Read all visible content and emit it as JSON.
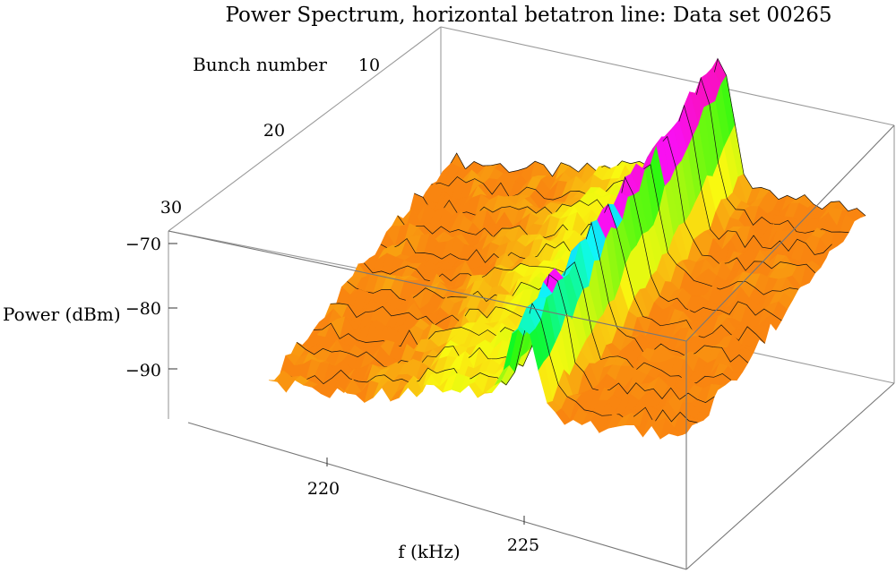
{
  "chart_data": {
    "type": "surface3d",
    "title": "Power Spectrum, horizontal betatron line: Data set 00265",
    "xlabel": "f (kHz)",
    "ylabel": "Bunch number",
    "zlabel": "Power (dBm)",
    "x_ticks": [
      "220",
      "225"
    ],
    "y_ticks": [
      "10",
      "20",
      "30"
    ],
    "z_ticks": [
      "−70",
      "−80",
      "−90"
    ],
    "x_range": [
      217,
      230
    ],
    "y_range": [
      1,
      33
    ],
    "z_range": [
      -100,
      -68
    ],
    "peak": {
      "f_khz": 225.5,
      "power_dbm": -70,
      "width_khz": 0.55
    },
    "baseline_power_dbm": -94,
    "colormap": "hue",
    "grid": false,
    "legend": "none"
  }
}
